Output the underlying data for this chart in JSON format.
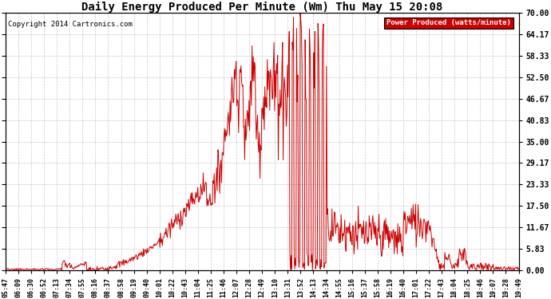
{
  "title": "Daily Energy Produced Per Minute (Wm) Thu May 15 20:08",
  "copyright": "Copyright 2014 Cartronics.com",
  "legend_label": "Power Produced (watts/minute)",
  "ymin": 0.0,
  "ymax": 70.0,
  "yticks": [
    0.0,
    5.83,
    11.67,
    17.5,
    23.33,
    29.17,
    35.0,
    40.83,
    46.67,
    52.5,
    58.33,
    64.17,
    70.0
  ],
  "ytick_labels": [
    "0.00",
    "5.83",
    "11.67",
    "17.50",
    "23.33",
    "29.17",
    "35.00",
    "40.83",
    "46.67",
    "52.50",
    "58.33",
    "64.17",
    "70.00"
  ],
  "bg_color": "#ffffff",
  "line_color": "#cc0000",
  "grid_color": "#c8c8c8",
  "legend_bg": "#cc0000",
  "legend_text_color": "#ffffff",
  "legend_border": "#000000",
  "xtick_labels": [
    "05:47",
    "06:09",
    "06:30",
    "06:52",
    "07:13",
    "07:34",
    "07:55",
    "08:16",
    "08:37",
    "08:58",
    "09:19",
    "09:40",
    "10:01",
    "10:22",
    "10:43",
    "11:04",
    "11:25",
    "11:46",
    "12:07",
    "12:28",
    "12:49",
    "13:10",
    "13:31",
    "13:52",
    "14:13",
    "14:34",
    "14:55",
    "15:16",
    "15:37",
    "15:58",
    "16:19",
    "16:40",
    "17:01",
    "17:22",
    "17:43",
    "18:04",
    "18:25",
    "18:46",
    "19:07",
    "19:28",
    "19:49"
  ],
  "num_points": 842
}
